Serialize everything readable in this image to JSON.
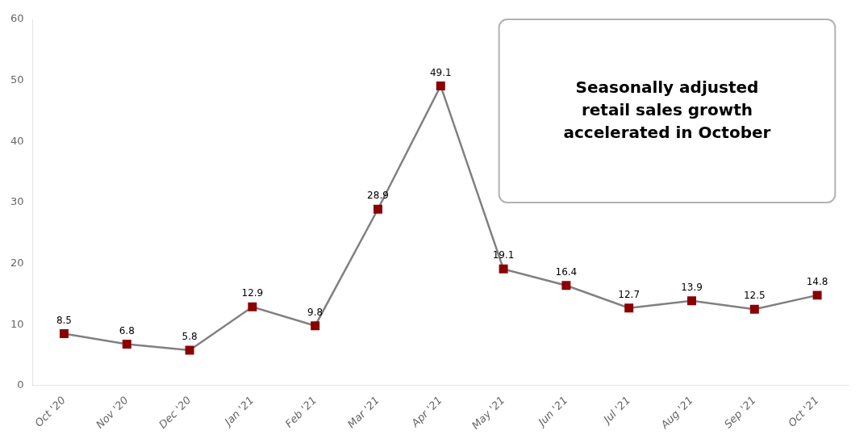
{
  "chart_data": {
    "type": "line",
    "categories": [
      "Oct '20",
      "Nov '20",
      "Dec '20",
      "Jan '21",
      "Feb '21",
      "Mar '21",
      "Apr '21",
      "May '21",
      "Jun '21",
      "Jul '21",
      "Aug '21",
      "Sep '21",
      "Oct '21"
    ],
    "values": [
      8.5,
      6.8,
      5.8,
      12.9,
      9.8,
      28.9,
      49.1,
      19.1,
      16.4,
      12.7,
      13.9,
      12.5,
      14.8
    ],
    "color": "#808080",
    "colors": [
      "#8B0000",
      "#8B0000",
      "#8B0000",
      "#8B0000",
      "#8B0000",
      "#8B0000",
      "#8B0000",
      "#8B0000",
      "#8B0000",
      "#8B0000",
      "#8B0000",
      "#8B0000",
      "#8B0000"
    ],
    "marker": "square",
    "data_labels": true,
    "annotation": "Seasonally adjusted\nretail sales growth\naccelerated in October",
    "ylim": [
      0,
      60
    ],
    "yticks": [
      0,
      10,
      20,
      30,
      40,
      50,
      60
    ],
    "grid": false
  }
}
